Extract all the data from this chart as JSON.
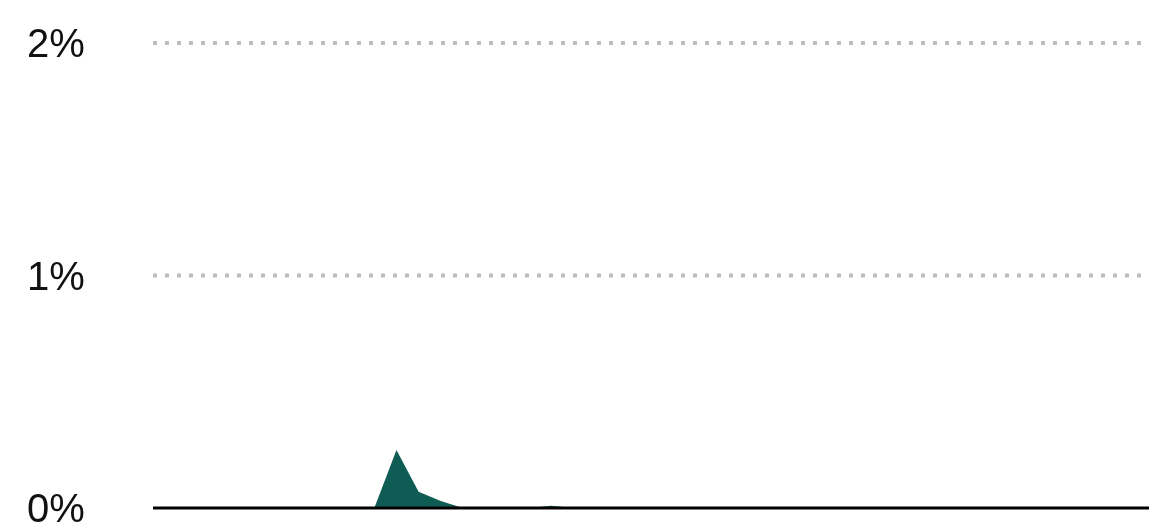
{
  "chart_data": {
    "type": "area",
    "categories": [
      null,
      null,
      null,
      null,
      null,
      null,
      null,
      null,
      null,
      null,
      null,
      null,
      null,
      null,
      null,
      null,
      null,
      null,
      null,
      null,
      null,
      null,
      null,
      null,
      null,
      null,
      null,
      null,
      null,
      null,
      null,
      null,
      null,
      null,
      null,
      null,
      null,
      null,
      null,
      null,
      null,
      null,
      null,
      null,
      null,
      null
    ],
    "series": [
      {
        "color": "#0f5c55",
        "values": [
          null,
          null,
          null,
          null,
          null,
          null,
          null,
          null,
          null,
          null,
          0,
          0.25,
          0.07,
          0.03,
          0,
          0,
          0,
          0,
          0.01,
          0,
          null,
          null,
          null,
          null,
          null,
          null,
          null,
          null,
          null,
          null,
          null,
          null,
          null,
          null,
          null,
          null,
          null,
          null,
          null,
          null,
          null,
          null,
          null,
          null,
          null,
          null
        ]
      }
    ],
    "ylim": [
      0,
      2
    ],
    "yticks": [
      {
        "value": 0,
        "label": "0%"
      },
      {
        "value": 1,
        "label": "1%"
      },
      {
        "value": 2,
        "label": "2%"
      }
    ],
    "grid": "y",
    "tick_labels": "y"
  }
}
